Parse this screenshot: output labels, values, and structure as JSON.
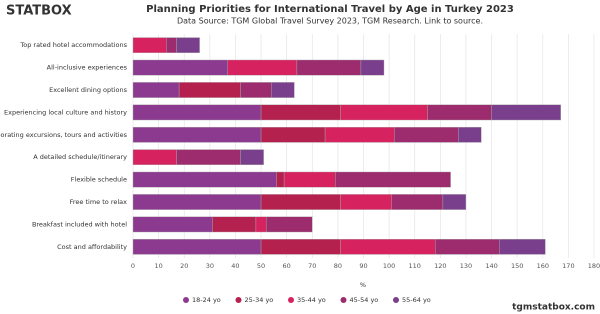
{
  "logo": "STATBOX",
  "footer": "tgmstatbox.com",
  "chart_data": {
    "type": "bar",
    "orientation": "horizontal",
    "stacked": true,
    "title": "Planning Priorities for International Travel by Age in Turkey 2023",
    "subtitle": "Data Source: TGM Global Travel Survey 2023, TGM Research. Link to source.",
    "xlabel": "%",
    "categories": [
      "Top rated hotel accommodations",
      "All-inclusive experiences",
      "Excellent dining options",
      "Experiencing local culture and history",
      "Incorporating excursions, tours and activities",
      "A detailed schedule/itinerary",
      "Flexible schedule",
      "Free time to relax",
      "Breakfast included with hotel",
      "Cost and affordability"
    ],
    "series": [
      {
        "name": "18-24 yo",
        "color": "#8b3a8f",
        "values": [
          0,
          37,
          18,
          50,
          50,
          0,
          56,
          50,
          31,
          50
        ]
      },
      {
        "name": "25-34 yo",
        "color": "#b5214f",
        "values": [
          0,
          0,
          24,
          31,
          25,
          0,
          3,
          31,
          17,
          31
        ]
      },
      {
        "name": "35-44 yo",
        "color": "#d6225e",
        "values": [
          13,
          27,
          0,
          34,
          27,
          17,
          20,
          20,
          4,
          37
        ]
      },
      {
        "name": "45-54 yo",
        "color": "#9c2c6d",
        "values": [
          4,
          25,
          12,
          25,
          25,
          25,
          45,
          20,
          18,
          25
        ]
      },
      {
        "name": "55-64 yo",
        "color": "#7a3f8c",
        "values": [
          9,
          9,
          9,
          27,
          9,
          9,
          0,
          9,
          0,
          18
        ]
      }
    ],
    "xlim": [
      0,
      180
    ],
    "xticks": [
      0,
      10,
      20,
      30,
      40,
      50,
      60,
      70,
      80,
      90,
      100,
      110,
      120,
      130,
      140,
      150,
      160,
      170,
      180
    ],
    "grid": true
  }
}
